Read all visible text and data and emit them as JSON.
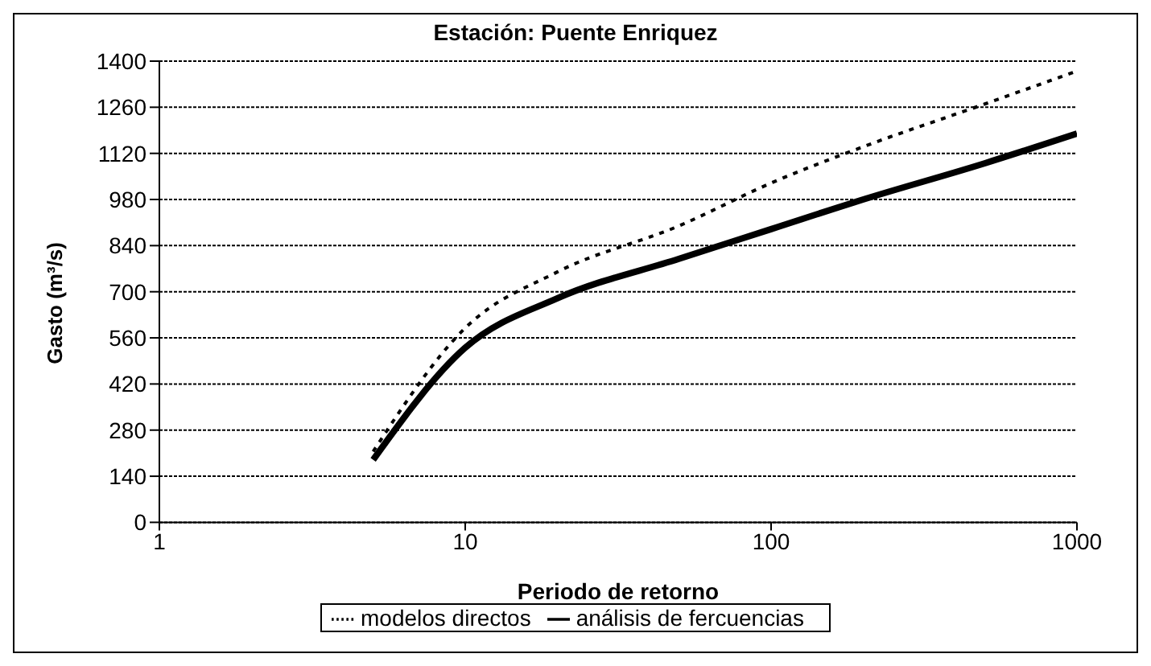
{
  "chart_data": {
    "type": "line",
    "title": "Estación: Puente Enriquez",
    "xlabel": "Periodo de retorno",
    "ylabel": "Gasto (m³/s)",
    "log": "x",
    "xlim": [
      1,
      1000
    ],
    "xticks": [
      1,
      10,
      100,
      1000
    ],
    "ylim": [
      0,
      1400
    ],
    "yticks": [
      0,
      140,
      280,
      420,
      560,
      700,
      840,
      980,
      1120,
      1260,
      1400
    ],
    "grid": "y",
    "legend": "bottom",
    "marker": "none",
    "series": [
      {
        "name": "modelos directos",
        "color": "#000000",
        "line_style": "dotted",
        "x": [
          5,
          10,
          20,
          50,
          100,
          200,
          500,
          1000
        ],
        "values": [
          215,
          590,
          760,
          900,
          1030,
          1140,
          1270,
          1370
        ]
      },
      {
        "name": "análisis de fercuencias",
        "color": "#000000",
        "line_style": "solid",
        "x": [
          5,
          10,
          20,
          50,
          100,
          200,
          500,
          1000
        ],
        "values": [
          190,
          530,
          680,
          800,
          890,
          980,
          1090,
          1180
        ]
      }
    ]
  }
}
